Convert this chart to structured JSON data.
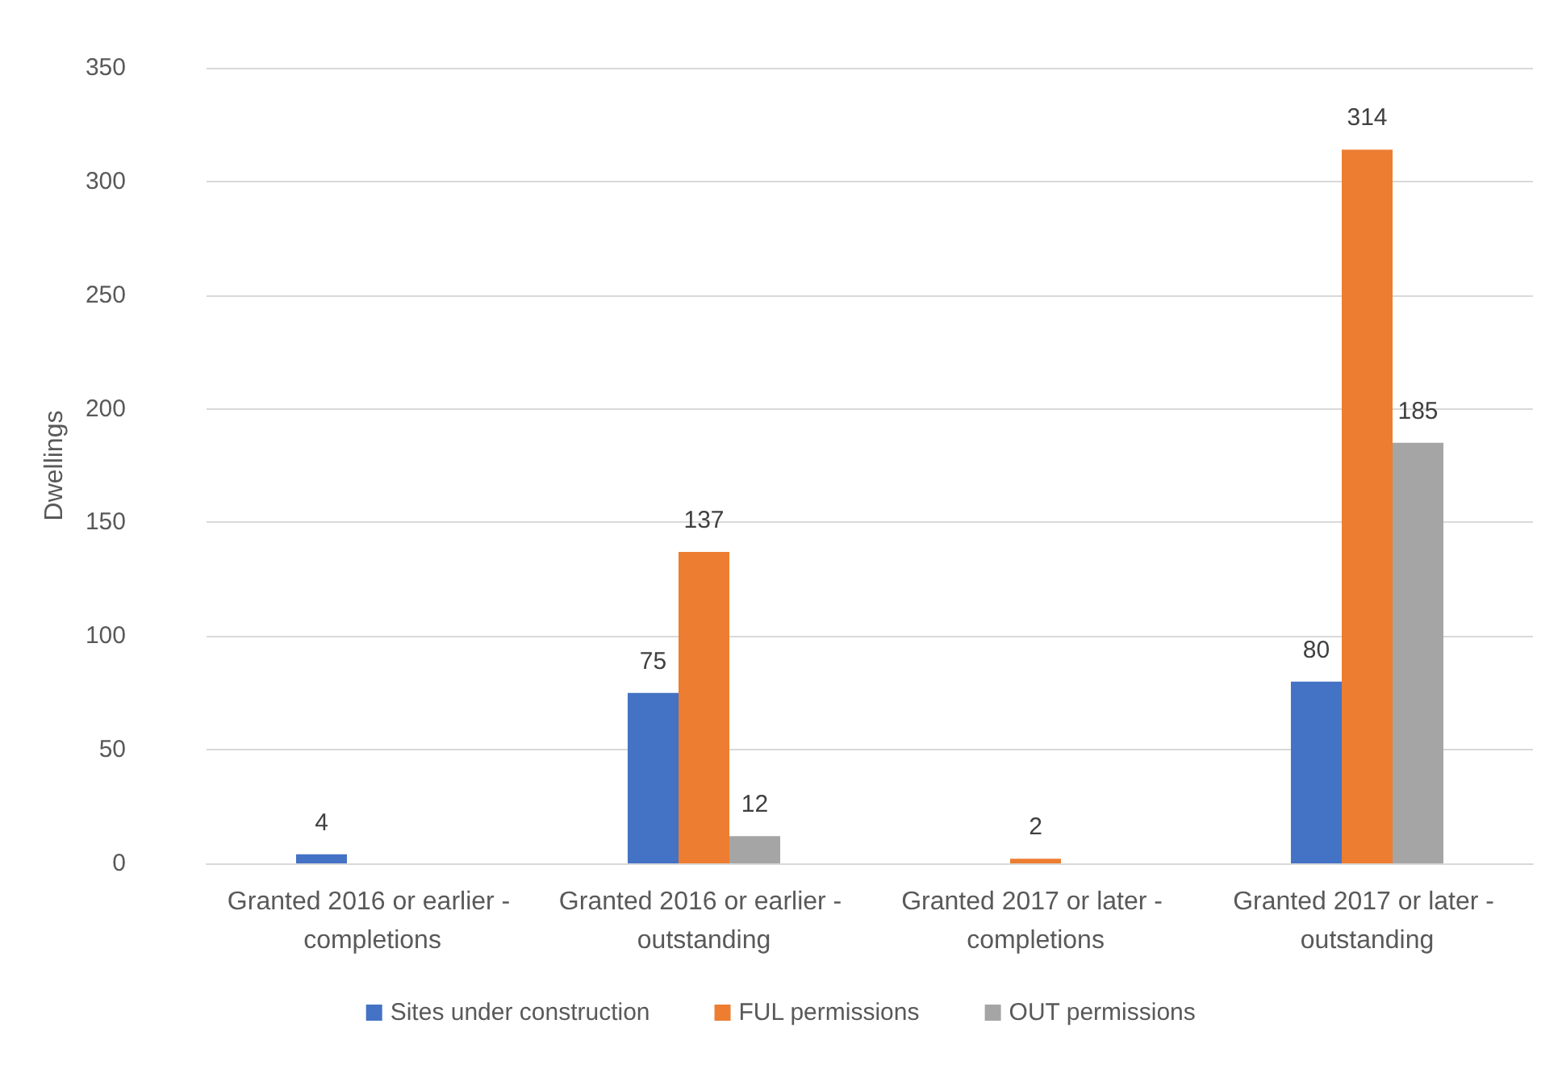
{
  "chart_data": {
    "type": "bar",
    "ylabel": "Dwellings",
    "categories": [
      "Granted 2016 or earlier - completions",
      "Granted 2016 or earlier - outstanding",
      "Granted 2017 or later - completions",
      "Granted 2017 or later - outstanding"
    ],
    "series": [
      {
        "name": "Sites under construction",
        "color": "#4472c4",
        "values": [
          4,
          75,
          null,
          80
        ]
      },
      {
        "name": "FUL permissions",
        "color": "#ed7d31",
        "values": [
          null,
          137,
          2,
          314
        ]
      },
      {
        "name": "OUT permissions",
        "color": "#a5a5a5",
        "values": [
          null,
          12,
          null,
          185
        ]
      }
    ],
    "ylim": [
      0,
      350
    ],
    "yticks": [
      0,
      50,
      100,
      150,
      200,
      250,
      300,
      350
    ],
    "grid": "y",
    "legend": "bottom",
    "data_labels": true
  }
}
